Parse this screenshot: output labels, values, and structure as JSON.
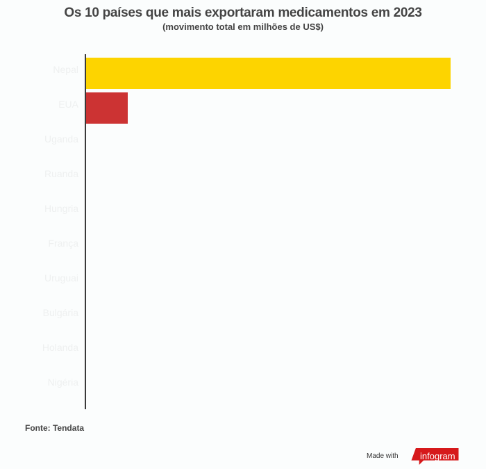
{
  "chart_data": {
    "type": "bar",
    "orientation": "horizontal",
    "title": "Os 10 países que mais exportaram medicamentos em 2023",
    "subtitle": "(movimento total em milhões de US$)",
    "xlabel": "",
    "ylabel": "",
    "categories": [
      "Nepal",
      "EUA",
      "Uganda",
      "Ruanda",
      "Hungria",
      "França",
      "Uruguai",
      "Bulgária",
      "Holanda",
      "Nigéria"
    ],
    "values": [
      525,
      60,
      0,
      0,
      0,
      0,
      0,
      0,
      0,
      0
    ],
    "colors": [
      "#fdd400",
      "#cc3333",
      "#cccccc",
      "#cccccc",
      "#cccccc",
      "#cccccc",
      "#cccccc",
      "#cccccc",
      "#cccccc",
      "#cccccc"
    ],
    "grid": false,
    "legend": "none"
  },
  "footer": {
    "source": "Fonte: Tendata",
    "made_with": "Made with",
    "brand": "infogram"
  }
}
